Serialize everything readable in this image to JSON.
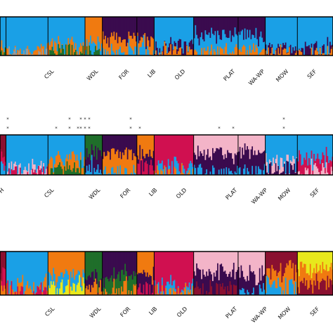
{
  "chart_data": {
    "type": "bar",
    "layout": "stacked admixture membership plots (three panels), one thin bar per individual",
    "ylim": [
      0,
      1
    ],
    "colors": {
      "blue": "#1aa0e6",
      "orange": "#f07a10",
      "purple": "#3a0b4e",
      "green": "#1f6e2a",
      "crimson": "#d01050",
      "pink": "#f3b4c8",
      "maroon": "#8a1030",
      "yellow": "#e8e81c",
      "gray": "#9a9a9a"
    },
    "populations": [
      "CSL",
      "WDL",
      "FOR",
      "LIB",
      "OLD",
      "PLAT",
      "WA-WP",
      "MOW",
      "SEF"
    ],
    "panels": [
      {
        "label_suffix_left": "",
        "groups": [
          {
            "name": "",
            "n": 6,
            "mix": {
              "blue": 0.85,
              "orange": 0.1,
              "green": 0.05
            }
          },
          {
            "name": "CSL",
            "n": 34,
            "mix": {
              "blue": 0.9,
              "orange": 0.07,
              "gray": 0.03
            }
          },
          {
            "name": "",
            "n": 30,
            "mix": {
              "blue": 0.72,
              "orange": 0.2,
              "green": 0.08
            }
          },
          {
            "name": "WDL",
            "n": 14,
            "mix": {
              "orange": 0.7,
              "blue": 0.25,
              "green": 0.05
            }
          },
          {
            "name": "FOR",
            "n": 28,
            "mix": {
              "purple": 0.55,
              "orange": 0.35,
              "blue": 0.1
            }
          },
          {
            "name": "LIB",
            "n": 14,
            "mix": {
              "purple": 0.55,
              "orange": 0.25,
              "blue": 0.2
            }
          },
          {
            "name": "OLD",
            "n": 32,
            "mix": {
              "blue": 0.75,
              "purple": 0.15,
              "orange": 0.1
            }
          },
          {
            "name": "PLAT",
            "n": 36,
            "mix": {
              "purple": 0.45,
              "blue": 0.4,
              "orange": 0.15
            }
          },
          {
            "name": "WA-WP",
            "n": 22,
            "mix": {
              "purple": 0.5,
              "blue": 0.4,
              "orange": 0.1
            }
          },
          {
            "name": "MOW",
            "n": 26,
            "mix": {
              "blue": 0.85,
              "purple": 0.1,
              "orange": 0.05
            }
          },
          {
            "name": "SEF",
            "n": 30,
            "mix": {
              "blue": 0.8,
              "purple": 0.12,
              "orange": 0.08
            }
          }
        ]
      },
      {
        "label_suffix_left": "H",
        "groups": [
          {
            "name": "",
            "n": 6,
            "mix": {
              "maroon": 0.6,
              "crimson": 0.25,
              "blue": 0.15
            }
          },
          {
            "name": "CSL",
            "n": 34,
            "mix": {
              "blue": 0.88,
              "pink": 0.07,
              "crimson": 0.05
            }
          },
          {
            "name": "",
            "n": 30,
            "mix": {
              "blue": 0.6,
              "orange": 0.25,
              "green": 0.15
            }
          },
          {
            "name": "WDL",
            "n": 14,
            "mix": {
              "green": 0.4,
              "purple": 0.35,
              "blue": 0.25
            }
          },
          {
            "name": "FOR",
            "n": 28,
            "mix": {
              "purple": 0.5,
              "orange": 0.45,
              "blue": 0.05
            }
          },
          {
            "name": "LIB",
            "n": 14,
            "mix": {
              "orange": 0.5,
              "purple": 0.3,
              "crimson": 0.2
            }
          },
          {
            "name": "OLD",
            "n": 32,
            "mix": {
              "crimson": 0.8,
              "blue": 0.15,
              "orange": 0.05
            }
          },
          {
            "name": "PLAT",
            "n": 36,
            "mix": {
              "pink": 0.5,
              "purple": 0.45,
              "blue": 0.05
            }
          },
          {
            "name": "WA-WP",
            "n": 22,
            "mix": {
              "pink": 0.45,
              "purple": 0.45,
              "blue": 0.1
            }
          },
          {
            "name": "MOW",
            "n": 26,
            "mix": {
              "blue": 0.65,
              "pink": 0.2,
              "purple": 0.15
            }
          },
          {
            "name": "SEF",
            "n": 30,
            "mix": {
              "blue": 0.55,
              "crimson": 0.3,
              "pink": 0.15
            }
          }
        ],
        "asterisk_rows": 3
      },
      {
        "label_suffix_left": "",
        "groups": [
          {
            "name": "",
            "n": 6,
            "mix": {
              "maroon": 0.55,
              "crimson": 0.3,
              "orange": 0.15
            }
          },
          {
            "name": "CSL",
            "n": 34,
            "mix": {
              "blue": 0.8,
              "orange": 0.12,
              "crimson": 0.08
            }
          },
          {
            "name": "",
            "n": 30,
            "mix": {
              "orange": 0.55,
              "blue": 0.25,
              "yellow": 0.2
            }
          },
          {
            "name": "WDL",
            "n": 14,
            "mix": {
              "green": 0.55,
              "purple": 0.25,
              "orange": 0.2
            }
          },
          {
            "name": "FOR",
            "n": 28,
            "mix": {
              "purple": 0.55,
              "green": 0.3,
              "orange": 0.15
            }
          },
          {
            "name": "LIB",
            "n": 14,
            "mix": {
              "orange": 0.45,
              "purple": 0.35,
              "crimson": 0.2
            }
          },
          {
            "name": "OLD",
            "n": 32,
            "mix": {
              "crimson": 0.85,
              "blue": 0.1,
              "orange": 0.05
            }
          },
          {
            "name": "PLAT",
            "n": 36,
            "mix": {
              "pink": 0.5,
              "purple": 0.4,
              "maroon": 0.1
            }
          },
          {
            "name": "WA-WP",
            "n": 22,
            "mix": {
              "pink": 0.5,
              "purple": 0.4,
              "blue": 0.1
            }
          },
          {
            "name": "MOW",
            "n": 26,
            "mix": {
              "maroon": 0.45,
              "orange": 0.35,
              "blue": 0.2
            }
          },
          {
            "name": "SEF",
            "n": 30,
            "mix": {
              "yellow": 0.4,
              "orange": 0.35,
              "maroon": 0.25
            }
          }
        ]
      }
    ],
    "labels": {
      "panel1": [
        "CSL",
        "WDL",
        "FOR",
        "LIB",
        "OLD",
        "PLAT",
        "WA-WP",
        "MOW",
        "SEF"
      ],
      "panel2": [
        "H",
        "CSL",
        "WDL",
        "FOR",
        "LIB",
        "OLD",
        "PLAT",
        "WA-WP",
        "MOW",
        "SEF"
      ],
      "panel3": [
        "CSL",
        "WDL",
        "FOR",
        "LIB",
        "OLD",
        "PLAT",
        "WA-WP",
        "MOW",
        "SEF"
      ]
    },
    "asterisk": "*"
  }
}
